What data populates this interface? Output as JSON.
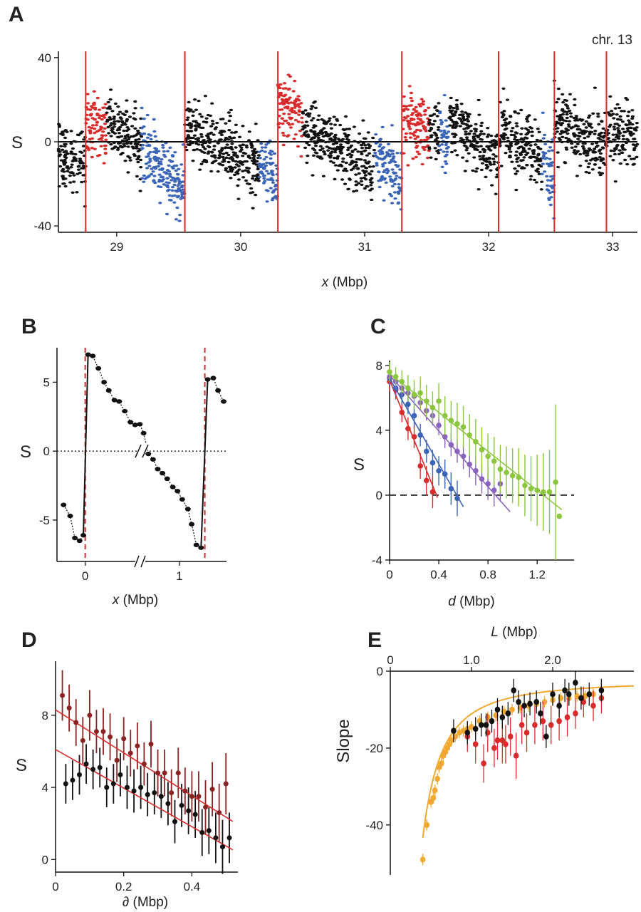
{
  "panels": {
    "A": {
      "letter": "A",
      "annotation": "chr. 13",
      "xlabel_var": "x",
      "xlabel_unit": " (Mbp)",
      "ylabel": "S",
      "colors": {
        "black": "#111111",
        "red": "#d92b2b",
        "blue": "#3a64b8",
        "boundary": "#d92b2b"
      }
    },
    "B": {
      "letter": "B",
      "xlabel_var": "x",
      "xlabel_unit": " (Mbp)",
      "ylabel": "S"
    },
    "C": {
      "letter": "C",
      "xlabel_var": "d",
      "xlabel_unit": " (Mbp)",
      "ylabel": "S"
    },
    "D": {
      "letter": "D",
      "xlabel_var": "∂",
      "xlabel_unit": " (Mbp)",
      "ylabel": "S"
    },
    "E": {
      "letter": "E",
      "xlabel_var": "L",
      "xlabel_unit": " (Mbp)",
      "ylabel": "Slope"
    }
  },
  "chart_data": [
    {
      "id": "A",
      "type": "scatter",
      "xlim": [
        28.53,
        33.2
      ],
      "ylim": [
        -43,
        43
      ],
      "xticks": [
        29,
        30,
        31,
        32,
        33
      ],
      "yticks": [
        40,
        0,
        -40
      ],
      "boundaries": [
        28.75,
        29.55,
        30.3,
        31.3,
        32.08,
        32.53,
        32.95
      ],
      "segments": [
        {
          "x0": 28.53,
          "x1": 28.75,
          "color": "black",
          "s_start": -5,
          "s_end": -13
        },
        {
          "x0": 28.75,
          "x1": 28.92,
          "color": "red",
          "s_start": 9,
          "s_end": 5
        },
        {
          "x0": 28.92,
          "x1": 29.2,
          "color": "black",
          "s_start": 10,
          "s_end": -2
        },
        {
          "x0": 29.2,
          "x1": 29.55,
          "color": "blue",
          "s_start": -3,
          "s_end": -22
        },
        {
          "x0": 29.55,
          "x1": 30.15,
          "color": "black",
          "s_start": 6,
          "s_end": -12
        },
        {
          "x0": 30.15,
          "x1": 30.3,
          "color": "blue",
          "s_start": -8,
          "s_end": -22
        },
        {
          "x0": 30.3,
          "x1": 30.5,
          "color": "red",
          "s_start": 20,
          "s_end": 9
        },
        {
          "x0": 30.5,
          "x1": 31.08,
          "color": "black",
          "s_start": 7,
          "s_end": -14
        },
        {
          "x0": 31.08,
          "x1": 31.3,
          "color": "blue",
          "s_start": -7,
          "s_end": -18
        },
        {
          "x0": 31.3,
          "x1": 31.52,
          "color": "red",
          "s_start": 10,
          "s_end": 7
        },
        {
          "x0": 31.52,
          "x1": 31.6,
          "color": "black",
          "s_start": 7,
          "s_end": 5
        },
        {
          "x0": 31.6,
          "x1": 31.68,
          "color": "blue",
          "s_start": 6,
          "s_end": -4
        },
        {
          "x0": 31.68,
          "x1": 32.08,
          "color": "black",
          "s_start": 9,
          "s_end": -8
        },
        {
          "x0": 32.08,
          "x1": 32.43,
          "color": "black",
          "s_start": 5,
          "s_end": -10
        },
        {
          "x0": 32.43,
          "x1": 32.53,
          "color": "blue",
          "s_start": -8,
          "s_end": -20
        },
        {
          "x0": 32.53,
          "x1": 32.95,
          "color": "black",
          "s_start": 10,
          "s_end": -4
        },
        {
          "x0": 32.95,
          "x1": 33.2,
          "color": "black",
          "s_start": 7,
          "s_end": 2
        }
      ]
    },
    {
      "id": "B",
      "type": "line",
      "xlim": [
        -0.3,
        1.5
      ],
      "ylim": [
        -8,
        7.5
      ],
      "xticks": [
        0,
        1
      ],
      "yticks": [
        5,
        0,
        -5
      ],
      "boundaries": [
        0,
        1.27
      ],
      "points": [
        {
          "x": -0.23,
          "y": -3.9
        },
        {
          "x": -0.16,
          "y": -4.7
        },
        {
          "x": -0.11,
          "y": -6.3
        },
        {
          "x": -0.06,
          "y": -6.5
        },
        {
          "x": -0.02,
          "y": -6.1
        },
        {
          "x": 0.03,
          "y": 7.0
        },
        {
          "x": 0.08,
          "y": 6.9
        },
        {
          "x": 0.14,
          "y": 6.0
        },
        {
          "x": 0.2,
          "y": 5.0
        },
        {
          "x": 0.25,
          "y": 4.4
        },
        {
          "x": 0.31,
          "y": 3.7
        },
        {
          "x": 0.36,
          "y": 3.6
        },
        {
          "x": 0.42,
          "y": 2.9
        },
        {
          "x": 0.48,
          "y": 2.1
        },
        {
          "x": 0.53,
          "y": 1.9
        },
        {
          "x": 0.58,
          "y": 1.95
        },
        {
          "x": 0.62,
          "y": 1.3
        },
        {
          "x": 0.67,
          "y": -0.2
        },
        {
          "x": 0.72,
          "y": -0.6
        },
        {
          "x": 0.77,
          "y": -1.3
        },
        {
          "x": 0.82,
          "y": -1.6
        },
        {
          "x": 0.87,
          "y": -2.0
        },
        {
          "x": 0.93,
          "y": -2.6
        },
        {
          "x": 0.98,
          "y": -2.9
        },
        {
          "x": 1.03,
          "y": -3.5
        },
        {
          "x": 1.09,
          "y": -4.2
        },
        {
          "x": 1.13,
          "y": -5.3
        },
        {
          "x": 1.18,
          "y": -6.8
        },
        {
          "x": 1.23,
          "y": -7.0
        },
        {
          "x": 1.3,
          "y": 5.2
        },
        {
          "x": 1.36,
          "y": 5.3
        },
        {
          "x": 1.41,
          "y": 4.4
        },
        {
          "x": 1.47,
          "y": 3.6
        }
      ]
    },
    {
      "id": "C",
      "type": "scatter",
      "xlim": [
        0,
        1.5
      ],
      "ylim": [
        -4,
        8.3
      ],
      "xticks": [
        0,
        0.4,
        0.8,
        1.2
      ],
      "yticks": [
        8,
        4,
        0,
        -4
      ],
      "series": [
        {
          "color": "#d92b2b",
          "x": [
            0,
            0.05,
            0.1,
            0.15,
            0.2,
            0.25,
            0.3,
            0.35
          ],
          "y": [
            7.0,
            6.5,
            5.1,
            4.1,
            3.6,
            1.8,
            0.9,
            0.2
          ],
          "err": [
            0.6,
            0.6,
            0.6,
            0.7,
            0.7,
            0.8,
            0.9,
            1.0
          ],
          "fit": [
            7.1,
            -18.6
          ],
          "fit_x": [
            0,
            0.39
          ]
        },
        {
          "color": "#3a64b8",
          "x": [
            0,
            0.05,
            0.1,
            0.15,
            0.2,
            0.25,
            0.3,
            0.35,
            0.4,
            0.45,
            0.5,
            0.55
          ],
          "y": [
            7.2,
            6.6,
            6.2,
            5.6,
            4.9,
            3.7,
            2.7,
            2.0,
            1.5,
            1.3,
            0.4,
            -0.2
          ],
          "err": [
            0.5,
            0.5,
            0.6,
            0.6,
            0.7,
            0.7,
            0.7,
            0.8,
            0.9,
            0.9,
            1.0,
            1.1
          ],
          "fit": [
            7.2,
            -13.2
          ],
          "fit_x": [
            0,
            0.6
          ]
        },
        {
          "color": "#8a63bd",
          "x": [
            0,
            0.05,
            0.1,
            0.15,
            0.2,
            0.25,
            0.3,
            0.35,
            0.4,
            0.45,
            0.5,
            0.55,
            0.6,
            0.65,
            0.7,
            0.75,
            0.8,
            0.85,
            0.9
          ],
          "y": [
            7.3,
            7.0,
            6.6,
            6.3,
            6.1,
            5.7,
            5.2,
            4.9,
            4.3,
            3.6,
            3.1,
            2.7,
            2.4,
            1.9,
            1.5,
            1.0,
            0.7,
            0.3,
            0.7
          ],
          "err": [
            0.5,
            0.5,
            0.5,
            0.5,
            0.5,
            0.5,
            0.6,
            0.6,
            0.6,
            0.7,
            0.7,
            0.7,
            0.8,
            0.8,
            0.9,
            0.9,
            1.0,
            1.0,
            1.1
          ],
          "fit": [
            7.4,
            -8.6
          ],
          "fit_x": [
            0,
            0.98
          ]
        },
        {
          "color": "#8cc63f",
          "x": [
            0,
            0.05,
            0.1,
            0.15,
            0.2,
            0.25,
            0.3,
            0.35,
            0.4,
            0.45,
            0.5,
            0.55,
            0.6,
            0.65,
            0.7,
            0.75,
            0.8,
            0.85,
            0.9,
            0.95,
            1.0,
            1.05,
            1.1,
            1.15,
            1.2,
            1.25,
            1.3,
            1.35,
            1.38
          ],
          "y": [
            7.6,
            7.3,
            7.0,
            6.6,
            6.2,
            6.3,
            5.8,
            5.4,
            5.8,
            4.9,
            4.6,
            4.4,
            4.2,
            3.7,
            3.3,
            2.8,
            2.4,
            2.1,
            1.6,
            1.4,
            1.2,
            1.1,
            0.6,
            0.4,
            0.3,
            0.2,
            0.2,
            0.8,
            -1.3
          ],
          "err": [
            0.6,
            0.6,
            0.7,
            0.8,
            0.9,
            1.0,
            1.0,
            1.0,
            1.1,
            1.2,
            1.2,
            1.3,
            1.3,
            1.3,
            1.4,
            1.4,
            1.4,
            1.5,
            1.5,
            1.6,
            1.7,
            1.8,
            1.9,
            2.0,
            2.2,
            2.4,
            2.6,
            4.8,
            0.0
          ],
          "fit": [
            7.5,
            -6.0
          ],
          "fit_x": [
            0,
            1.4
          ]
        }
      ]
    },
    {
      "id": "D",
      "type": "scatter",
      "xlim": [
        0,
        0.535
      ],
      "ylim": [
        -0.7,
        11
      ],
      "xticks": [
        0,
        0.2,
        0.4
      ],
      "yticks": [
        8,
        4,
        0
      ],
      "series": [
        {
          "color": "#8b2323",
          "x": [
            0.02,
            0.04,
            0.06,
            0.08,
            0.1,
            0.12,
            0.14,
            0.16,
            0.18,
            0.2,
            0.22,
            0.24,
            0.26,
            0.28,
            0.3,
            0.32,
            0.34,
            0.36,
            0.38,
            0.4,
            0.42,
            0.44,
            0.46,
            0.48,
            0.5
          ],
          "y": [
            9.1,
            8.4,
            7.6,
            6.6,
            8.0,
            7.1,
            7.1,
            6.8,
            5.5,
            6.7,
            5.9,
            6.3,
            5.3,
            6.4,
            4.8,
            4.8,
            3.7,
            4.8,
            3.8,
            3.5,
            3.5,
            2.9,
            3.9,
            2.6,
            4.2
          ],
          "err": [
            1.4,
            1.3,
            1.3,
            1.3,
            1.4,
            1.2,
            1.3,
            1.3,
            1.2,
            1.2,
            1.3,
            1.3,
            1.2,
            1.3,
            1.3,
            1.3,
            1.3,
            1.4,
            1.3,
            1.4,
            1.4,
            1.5,
            1.5,
            1.6,
            1.7
          ],
          "fit": [
            8.3,
            -11.9
          ],
          "fit_x": [
            0,
            0.52
          ]
        },
        {
          "color": "#111111",
          "x": [
            0.03,
            0.05,
            0.07,
            0.09,
            0.11,
            0.13,
            0.15,
            0.17,
            0.19,
            0.21,
            0.23,
            0.25,
            0.27,
            0.29,
            0.31,
            0.33,
            0.35,
            0.37,
            0.39,
            0.41,
            0.43,
            0.45,
            0.47,
            0.49,
            0.51
          ],
          "y": [
            4.2,
            4.4,
            4.7,
            5.3,
            5.0,
            5.1,
            4.0,
            4.2,
            4.7,
            4.0,
            3.8,
            4.0,
            3.6,
            3.7,
            3.5,
            3.1,
            2.1,
            3.0,
            2.7,
            2.5,
            1.5,
            1.6,
            1.2,
            0.7,
            1.2
          ],
          "err": [
            1.1,
            1.1,
            1.1,
            1.1,
            1.1,
            1.1,
            1.1,
            1.1,
            1.2,
            1.2,
            1.2,
            1.2,
            1.2,
            1.2,
            1.2,
            1.2,
            1.2,
            1.2,
            1.3,
            1.3,
            1.3,
            1.3,
            1.4,
            1.5,
            1.4
          ],
          "fit": [
            6.1,
            -10.7
          ],
          "fit_x": [
            0,
            0.52
          ]
        }
      ]
    },
    {
      "id": "E",
      "type": "scatter",
      "xlim": [
        0,
        3.0
      ],
      "ylim": [
        -53,
        0
      ],
      "xticks": [
        0,
        1.0,
        2.0
      ],
      "yticks": [
        0,
        -20,
        -40
      ],
      "series": [
        {
          "color": "#f0a830",
          "x": [
            0.4,
            0.45,
            0.5,
            0.53,
            0.55,
            0.58,
            0.6,
            0.63,
            0.65,
            0.68,
            0.7,
            0.73,
            0.75,
            0.8,
            0.85,
            0.9,
            0.95,
            1.0,
            1.1,
            1.2,
            1.3,
            1.4,
            1.5,
            1.6,
            1.7,
            1.8,
            1.9,
            2.0,
            2.1,
            2.2,
            2.3,
            2.4,
            2.5
          ],
          "y": [
            -49,
            -40,
            -34,
            -33,
            -31,
            -28,
            -25,
            -24,
            -22,
            -21,
            -20,
            -19,
            -18,
            -17,
            -16,
            -15.5,
            -15,
            -14.5,
            -13,
            -12,
            -11.5,
            -10.5,
            -10,
            -9.5,
            -9,
            -8.5,
            -8,
            -7.5,
            -7,
            -7,
            -6.5,
            -6.5,
            -6
          ],
          "err": [
            1.5,
            1.5,
            1.5,
            1.5,
            1.5,
            1.5,
            1.5,
            1.5,
            1.5,
            1.5,
            1.5,
            1.5,
            1.5,
            1.5,
            1.5,
            1.5,
            1.5,
            1.5,
            1.5,
            1.5,
            1.5,
            1.5,
            1.5,
            1.5,
            1.5,
            1.5,
            1.5,
            1.5,
            1.5,
            1.5,
            1.5,
            1.5,
            1.5
          ]
        },
        {
          "color": "#d92b2b",
          "x": [
            0.95,
            1.05,
            1.15,
            1.2,
            1.28,
            1.32,
            1.38,
            1.42,
            1.48,
            1.55,
            1.62,
            1.68,
            1.78,
            1.88,
            1.98,
            2.08,
            2.18,
            2.28,
            2.38,
            2.5,
            2.6
          ],
          "y": [
            -17,
            -19,
            -24,
            -16,
            -20,
            -18,
            -18,
            -19,
            -17,
            -22,
            -14,
            -16,
            -14,
            -13,
            -14,
            -13,
            -12,
            -11,
            -8,
            -9,
            -7
          ],
          "err": [
            4,
            5,
            5,
            5,
            5,
            5,
            6,
            5,
            5,
            6,
            5,
            5,
            5,
            5,
            5,
            5,
            5,
            4,
            4,
            4,
            4
          ]
        },
        {
          "color": "#111111",
          "x": [
            0.78,
            0.95,
            1.05,
            1.12,
            1.18,
            1.25,
            1.32,
            1.38,
            1.45,
            1.52,
            1.58,
            1.65,
            1.72,
            1.8,
            1.85,
            1.92,
            2.0,
            2.08,
            2.15,
            2.2,
            2.28,
            2.35,
            2.45,
            2.6
          ],
          "y": [
            -15.5,
            -16,
            -15,
            -14,
            -14,
            -13,
            -10,
            -12,
            -11,
            -5,
            -8,
            -9,
            -8.5,
            -8,
            -11,
            -17,
            -6,
            -9,
            -5,
            -6,
            -3,
            -7,
            -6,
            -5
          ],
          "err": [
            3,
            3,
            3,
            3,
            3,
            3,
            3,
            3,
            3,
            3,
            3,
            3,
            3,
            3,
            3,
            3,
            3,
            3,
            3,
            3,
            3,
            3,
            3,
            3
          ]
        }
      ],
      "fit": {
        "color": "#f0a830"
      }
    }
  ]
}
